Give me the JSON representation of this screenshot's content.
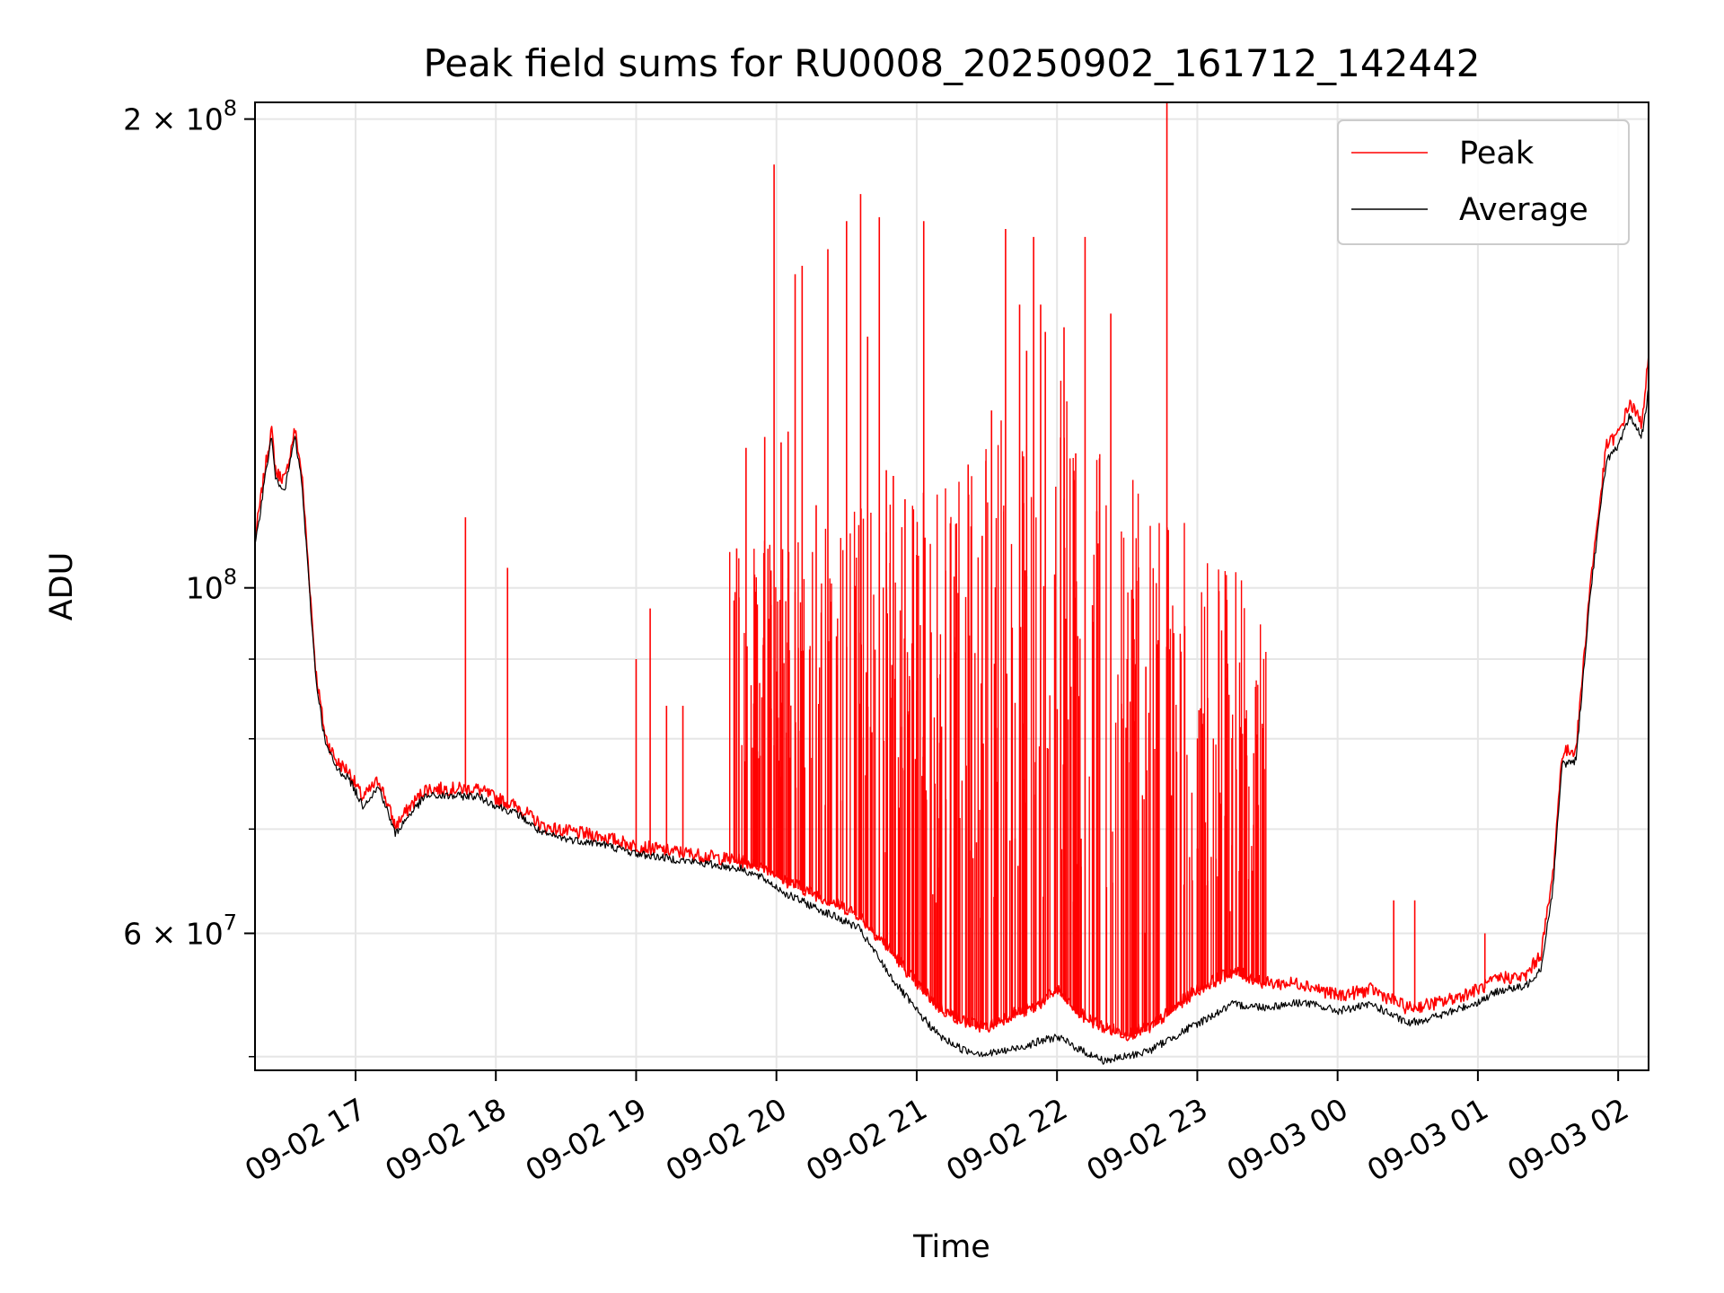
{
  "chart_data": {
    "type": "line",
    "title": "Peak field sums for RU0008_20250902_161712_142442",
    "xlabel": "Time",
    "ylabel": "ADU",
    "yscale": "log",
    "xlim": [
      "2025-09-02 16:17",
      "2025-09-03 02:13"
    ],
    "ylim": [
      49000000,
      205000000
    ],
    "grid": true,
    "legend": {
      "placement": "top-right",
      "entries": [
        "Peak",
        "Average"
      ]
    },
    "x_tick_labels": [
      "09-02 17",
      "09-02 18",
      "09-02 19",
      "09-02 20",
      "09-02 21",
      "09-02 22",
      "09-02 23",
      "09-03 00",
      "09-03 01",
      "09-03 02"
    ],
    "x_ticks": [
      "2025-09-02 17:00",
      "2025-09-02 18:00",
      "2025-09-02 19:00",
      "2025-09-02 20:00",
      "2025-09-02 21:00",
      "2025-09-02 22:00",
      "2025-09-02 23:00",
      "2025-09-03 00:00",
      "2025-09-03 01:00",
      "2025-09-03 02:00"
    ],
    "y_major_ticks": [
      {
        "value": 200000000,
        "mantissa": "2",
        "exp": "8"
      },
      {
        "value": 100000000,
        "mantissa": "",
        "exp": "8"
      },
      {
        "value": 60000000,
        "mantissa": "6",
        "exp": "7"
      }
    ],
    "y_minor_ticks": [
      50000000,
      70000000,
      80000000,
      90000000
    ],
    "series": [
      {
        "name": "Peak",
        "color": "#ff0000",
        "x": [
          "2025-09-02 16:17",
          "2025-09-02 16:21",
          "2025-09-02 16:24",
          "2025-09-02 16:26",
          "2025-09-02 16:30",
          "2025-09-02 16:34",
          "2025-09-02 16:37",
          "2025-09-02 16:40",
          "2025-09-02 16:43",
          "2025-09-02 16:47",
          "2025-09-02 16:52",
          "2025-09-02 16:57",
          "2025-09-02 17:03",
          "2025-09-02 17:10",
          "2025-09-02 17:17",
          "2025-09-02 17:23",
          "2025-09-02 17:30",
          "2025-09-02 17:37",
          "2025-09-02 17:45",
          "2025-09-02 17:52",
          "2025-09-02 18:00",
          "2025-09-02 18:10",
          "2025-09-02 18:20",
          "2025-09-02 18:30",
          "2025-09-02 18:45",
          "2025-09-02 19:00",
          "2025-09-02 19:15",
          "2025-09-02 19:30",
          "2025-09-02 19:45",
          "2025-09-02 19:55",
          "2025-09-02 20:05",
          "2025-09-02 20:20",
          "2025-09-02 20:35",
          "2025-09-02 20:50",
          "2025-09-02 21:00",
          "2025-09-02 21:10",
          "2025-09-02 21:20",
          "2025-09-02 21:30",
          "2025-09-02 21:40",
          "2025-09-02 21:50",
          "2025-09-02 22:00",
          "2025-09-02 22:10",
          "2025-09-02 22:20",
          "2025-09-02 22:30",
          "2025-09-02 22:40",
          "2025-09-02 22:50",
          "2025-09-02 23:00",
          "2025-09-02 23:15",
          "2025-09-02 23:30",
          "2025-09-02 23:45",
          "2025-09-03 00:00",
          "2025-09-03 00:15",
          "2025-09-03 00:30",
          "2025-09-03 00:45",
          "2025-09-03 01:00",
          "2025-09-03 01:10",
          "2025-09-03 01:20",
          "2025-09-03 01:27",
          "2025-09-03 01:32",
          "2025-09-03 01:36",
          "2025-09-03 01:42",
          "2025-09-03 01:48",
          "2025-09-03 01:55",
          "2025-09-03 02:00",
          "2025-09-03 02:05",
          "2025-09-03 02:10",
          "2025-09-03 02:13"
        ],
        "values": [
          107000000,
          118000000,
          126000000,
          118000000,
          117000000,
          126000000,
          118000000,
          102000000,
          88000000,
          80000000,
          77000000,
          76000000,
          73000000,
          75000000,
          70000000,
          72000000,
          74000000,
          74000000,
          74000000,
          74000000,
          73000000,
          72000000,
          70000000,
          69500000,
          69000000,
          68000000,
          67500000,
          67000000,
          66500000,
          66000000,
          64500000,
          63000000,
          61500000,
          58000000,
          55500000,
          53500000,
          52500000,
          52000000,
          53000000,
          53500000,
          55000000,
          53000000,
          52000000,
          51500000,
          52000000,
          53500000,
          55000000,
          56500000,
          55500000,
          55500000,
          54500000,
          55000000,
          53500000,
          54000000,
          55000000,
          56000000,
          56000000,
          58000000,
          65000000,
          78000000,
          78500000,
          100000000,
          123000000,
          125000000,
          131000000,
          127000000,
          140000000
        ]
      },
      {
        "name": "Average",
        "color": "#000000",
        "x": [
          "2025-09-02 16:17",
          "2025-09-02 16:21",
          "2025-09-02 16:24",
          "2025-09-02 16:26",
          "2025-09-02 16:30",
          "2025-09-02 16:34",
          "2025-09-02 16:37",
          "2025-09-02 16:40",
          "2025-09-02 16:43",
          "2025-09-02 16:47",
          "2025-09-02 16:52",
          "2025-09-02 16:57",
          "2025-09-02 17:03",
          "2025-09-02 17:10",
          "2025-09-02 17:17",
          "2025-09-02 17:23",
          "2025-09-02 17:30",
          "2025-09-02 17:37",
          "2025-09-02 17:45",
          "2025-09-02 17:52",
          "2025-09-02 18:00",
          "2025-09-02 18:10",
          "2025-09-02 18:20",
          "2025-09-02 18:30",
          "2025-09-02 18:45",
          "2025-09-02 19:00",
          "2025-09-02 19:15",
          "2025-09-02 19:30",
          "2025-09-02 19:45",
          "2025-09-02 19:55",
          "2025-09-02 20:05",
          "2025-09-02 20:20",
          "2025-09-02 20:35",
          "2025-09-02 20:50",
          "2025-09-02 21:00",
          "2025-09-02 21:10",
          "2025-09-02 21:20",
          "2025-09-02 21:30",
          "2025-09-02 21:40",
          "2025-09-02 21:50",
          "2025-09-02 22:00",
          "2025-09-02 22:10",
          "2025-09-02 22:20",
          "2025-09-02 22:30",
          "2025-09-02 22:40",
          "2025-09-02 22:50",
          "2025-09-02 23:00",
          "2025-09-02 23:15",
          "2025-09-02 23:30",
          "2025-09-02 23:45",
          "2025-09-03 00:00",
          "2025-09-03 00:15",
          "2025-09-03 00:30",
          "2025-09-03 00:45",
          "2025-09-03 01:00",
          "2025-09-03 01:10",
          "2025-09-03 01:20",
          "2025-09-03 01:27",
          "2025-09-03 01:32",
          "2025-09-03 01:36",
          "2025-09-03 01:42",
          "2025-09-03 01:48",
          "2025-09-03 01:55",
          "2025-09-03 02:00",
          "2025-09-03 02:05",
          "2025-09-03 02:10",
          "2025-09-03 02:13"
        ],
        "values": [
          106000000,
          117000000,
          125000000,
          117000000,
          116000000,
          125000000,
          117000000,
          101000000,
          87500000,
          79500000,
          76500000,
          75500000,
          72500000,
          74500000,
          69500000,
          71500000,
          73500000,
          73500000,
          73500000,
          73500000,
          72500000,
          71500000,
          69500000,
          69000000,
          68500000,
          67500000,
          67000000,
          66500000,
          66000000,
          65000000,
          63500000,
          62000000,
          60500000,
          56000000,
          53500000,
          51500000,
          50500000,
          50200000,
          50500000,
          51000000,
          51500000,
          50500000,
          49700000,
          50000000,
          50500000,
          51500000,
          52500000,
          54000000,
          53800000,
          54200000,
          53500000,
          54000000,
          52500000,
          53200000,
          54200000,
          55200000,
          55400000,
          57000000,
          64000000,
          77000000,
          77500000,
          99000000,
          121000000,
          123000000,
          129000000,
          125000000,
          134000000
        ]
      }
    ],
    "spikes": {
      "series": "Peak",
      "x": [
        "2025-09-02 17:47",
        "2025-09-02 18:05",
        "2025-09-02 19:00",
        "2025-09-02 19:06",
        "2025-09-02 19:13",
        "2025-09-02 19:20",
        "2025-09-02 19:43",
        "2025-09-02 19:47",
        "2025-09-02 19:55",
        "2025-09-02 19:59",
        "2025-09-02 20:02",
        "2025-09-02 20:05",
        "2025-09-02 20:08",
        "2025-09-02 20:11",
        "2025-09-02 20:17",
        "2025-09-02 20:22",
        "2025-09-02 20:30",
        "2025-09-02 20:36",
        "2025-09-02 20:39",
        "2025-09-02 20:44",
        "2025-09-02 20:47",
        "2025-09-02 20:50",
        "2025-09-02 20:55",
        "2025-09-02 21:00",
        "2025-09-02 21:03",
        "2025-09-02 21:10",
        "2025-09-02 21:17",
        "2025-09-02 21:22",
        "2025-09-02 21:28",
        "2025-09-02 21:32",
        "2025-09-02 21:38",
        "2025-09-02 21:44",
        "2025-09-02 21:47",
        "2025-09-02 21:50",
        "2025-09-02 21:53",
        "2025-09-02 21:55",
        "2025-09-02 21:59",
        "2025-09-02 22:03",
        "2025-09-02 22:08",
        "2025-09-02 22:12",
        "2025-09-02 22:17",
        "2025-09-02 22:23",
        "2025-09-02 22:30",
        "2025-09-02 22:33",
        "2025-09-02 22:38",
        "2025-09-02 22:43",
        "2025-09-02 22:47",
        "2025-09-02 22:53",
        "2025-09-02 23:00",
        "2025-09-02 23:08",
        "2025-09-02 23:14",
        "2025-09-02 23:22",
        "2025-09-03 00:24",
        "2025-09-03 00:33",
        "2025-09-03 01:03"
      ],
      "values": [
        111000000,
        103000000,
        90000000,
        97000000,
        84000000,
        84000000,
        106000000,
        123000000,
        125000000,
        187000000,
        124000000,
        126000000,
        159000000,
        161000000,
        113000000,
        165000000,
        172000000,
        179000000,
        145000000,
        173000000,
        119000000,
        118000000,
        114000000,
        105000000,
        172000000,
        88000000,
        110000000,
        120000000,
        108000000,
        130000000,
        170000000,
        152000000,
        142000000,
        168000000,
        152000000,
        146000000,
        102000000,
        147000000,
        122000000,
        168000000,
        112000000,
        150000000,
        90000000,
        69000000,
        89000000,
        92000000,
        207000000,
        91000000,
        68000000,
        67000000,
        62000000,
        65000000,
        63000000,
        63000000,
        60000000
      ]
    }
  }
}
